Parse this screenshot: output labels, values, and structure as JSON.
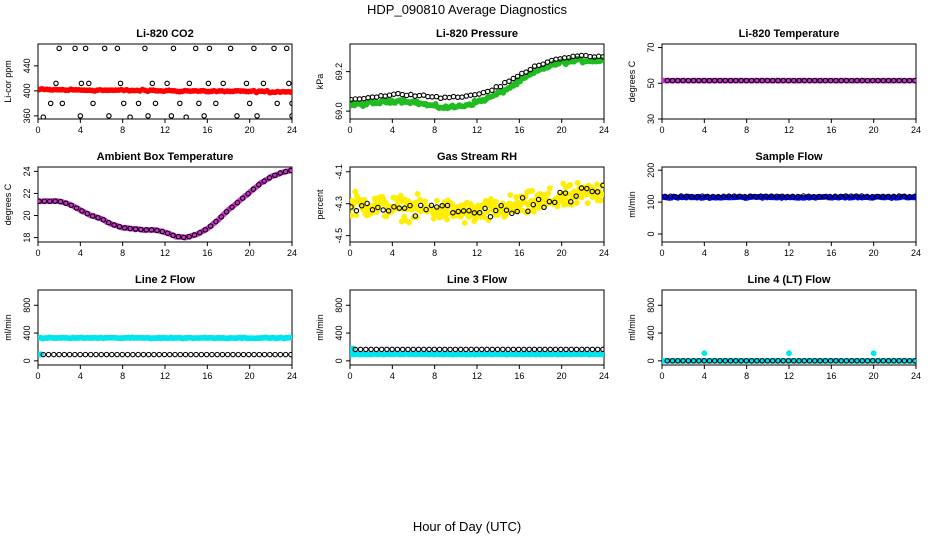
{
  "figure": {
    "title": "HDP_090810  Average Diagnostics",
    "xlabel": "Hour of Day (UTC)"
  },
  "chart_data": [
    {
      "type": "scatter",
      "title": "Li-820 CO2",
      "ylabel": "Li-cor ppm",
      "xlim": [
        0,
        24
      ],
      "ylim": [
        355,
        475
      ],
      "xticks": [
        0,
        4,
        8,
        12,
        16,
        20,
        24
      ],
      "yticks": [
        360,
        400,
        440
      ],
      "series": [
        {
          "marker": "filled",
          "color": "#ff0000",
          "fn": "flat",
          "params": {
            "a": 402,
            "b": -0.15,
            "noise": 1.2,
            "n": 96
          }
        },
        {
          "marker": "open",
          "color": "#000000",
          "x": [
            0.5,
            1.2,
            1.7,
            2.0,
            2.3,
            3.5,
            4.0,
            4.1,
            4.5,
            4.8,
            5.2,
            6.3,
            6.7,
            7.5,
            7.8,
            8.1,
            8.7,
            9.5,
            10.1,
            10.4,
            10.8,
            11.1,
            12.2,
            12.6,
            12.8,
            13.4,
            14.0,
            14.3,
            14.9,
            15.2,
            15.7,
            16.1,
            16.2,
            16.8,
            17.5,
            18.2,
            18.8,
            19.7,
            20.0,
            20.4,
            20.7,
            21.3,
            22.3,
            22.6,
            23.5,
            23.7,
            24.0,
            24.0
          ],
          "y": [
            358,
            380,
            412,
            468,
            380,
            468,
            360,
            412,
            468,
            412,
            380,
            468,
            360,
            468,
            412,
            380,
            358,
            380,
            468,
            360,
            412,
            380,
            412,
            360,
            468,
            380,
            358,
            412,
            468,
            380,
            360,
            412,
            468,
            380,
            412,
            468,
            360,
            412,
            380,
            468,
            360,
            412,
            468,
            380,
            468,
            412,
            360,
            380
          ]
        }
      ]
    },
    {
      "type": "scatter",
      "title": "Li-820 Pressure",
      "ylabel": "kPa",
      "xlim": [
        0,
        24
      ],
      "ylim": [
        68.96,
        69.34
      ],
      "xticks": [
        0,
        4,
        8,
        12,
        16,
        20,
        24
      ],
      "yticks": [
        69.0,
        69.2
      ],
      "ytick_labels": [
        "69.0",
        "69.2"
      ],
      "series": [
        {
          "marker": "filled",
          "color": "#22bb22",
          "fn": "sigmoid",
          "params": {
            "base": 69.03,
            "top": 69.27,
            "mid": 16.0,
            "k": 0.55,
            "dip": 0.02,
            "noise": 0.008,
            "n": 150
          }
        },
        {
          "marker": "open",
          "color": "#000000",
          "fn": "sigmoid",
          "params": {
            "base": 69.06,
            "top": 69.29,
            "mid": 15.8,
            "k": 0.55,
            "dip": 0.0,
            "noise": 0.004,
            "n": 60
          }
        }
      ]
    },
    {
      "type": "scatter",
      "title": "Li-820 Temperature",
      "ylabel": "degrees C",
      "xlim": [
        0,
        24
      ],
      "ylim": [
        30,
        72
      ],
      "xticks": [
        0,
        4,
        8,
        12,
        16,
        20,
        24
      ],
      "yticks": [
        30,
        50,
        70
      ],
      "series": [
        {
          "marker": "filled",
          "color": "#cc33cc",
          "fn": "flat",
          "params": {
            "a": 51.5,
            "b": 0,
            "noise": 0.05,
            "n": 96
          }
        },
        {
          "marker": "open",
          "color": "#000000",
          "fn": "flat",
          "params": {
            "a": 51.5,
            "b": 0,
            "noise": 0.0,
            "n": 48,
            "start": 0.5
          }
        }
      ]
    },
    {
      "type": "scatter",
      "title": "Ambient Box Temperature",
      "ylabel": "degrees C",
      "xlim": [
        0,
        24
      ],
      "ylim": [
        17.6,
        24.4
      ],
      "xticks": [
        0,
        4,
        8,
        12,
        16,
        20,
        24
      ],
      "yticks": [
        18,
        20,
        22,
        24
      ],
      "series": [
        {
          "marker": "filled",
          "color": "#cc33cc",
          "fn": "ambient",
          "params": {
            "noise": 0.03,
            "n": 150
          }
        },
        {
          "marker": "open",
          "color": "#000000",
          "fn": "ambient",
          "params": {
            "noise": 0.0,
            "n": 48
          }
        }
      ]
    },
    {
      "type": "scatter",
      "title": "Gas Stream RH",
      "ylabel": "percent",
      "xlim": [
        0,
        24
      ],
      "ylim": [
        -4.54,
        -4.07
      ],
      "xticks": [
        0,
        4,
        8,
        12,
        16,
        20,
        24
      ],
      "yticks": [
        -4.5,
        -4.3,
        -4.1
      ],
      "series": [
        {
          "marker": "filled",
          "color": "#ffee00",
          "fn": "rh",
          "params": {
            "noise": 0.06,
            "n": 300
          }
        },
        {
          "marker": "open",
          "color": "#000000",
          "fn": "rh",
          "params": {
            "noise": 0.045,
            "n": 48
          }
        }
      ]
    },
    {
      "type": "scatter",
      "title": "Sample Flow",
      "ylabel": "ml/min",
      "xlim": [
        0,
        24
      ],
      "ylim": [
        -25,
        210
      ],
      "xticks": [
        0,
        4,
        8,
        12,
        16,
        20,
        24
      ],
      "yticks": [
        0,
        100,
        200
      ],
      "series": [
        {
          "marker": "filled",
          "color": "#0000ff",
          "fn": "flat",
          "params": {
            "a": 115,
            "b": 0,
            "noise": 2.0,
            "n": 120
          }
        },
        {
          "marker": "open",
          "color": "#000000",
          "fn": "flat",
          "params": {
            "a": 118,
            "b": 0,
            "noise": 1.0,
            "n": 48,
            "start": 0.3
          }
        }
      ]
    },
    {
      "type": "scatter",
      "title": "Line 2 Flow",
      "ylabel": "ml/min",
      "xlim": [
        0,
        24
      ],
      "ylim": [
        -60,
        1020
      ],
      "xticks": [
        0,
        4,
        8,
        12,
        16,
        20,
        24
      ],
      "yticks": [
        0,
        400,
        800
      ],
      "series": [
        {
          "marker": "filled",
          "color": "#00e5ee",
          "fn": "flat",
          "params": {
            "a": 330,
            "b": 0,
            "noise": 6,
            "n": 150
          }
        },
        {
          "marker": "filled",
          "color": "#00e5ee",
          "fn": "flat",
          "params": {
            "a": 95,
            "b": 0,
            "noise": 3,
            "n": 3,
            "start": 0.0,
            "end": 0.3
          }
        },
        {
          "marker": "open",
          "color": "#000000",
          "fn": "flat",
          "params": {
            "a": 90,
            "b": 0,
            "noise": 0,
            "n": 48,
            "start": 0.5
          }
        }
      ]
    },
    {
      "type": "scatter",
      "title": "Line 3 Flow",
      "ylabel": "ml/min",
      "xlim": [
        0,
        24
      ],
      "ylim": [
        -60,
        1020
      ],
      "xticks": [
        0,
        4,
        8,
        12,
        16,
        20,
        24
      ],
      "yticks": [
        0,
        400,
        800
      ],
      "series": [
        {
          "marker": "filled",
          "color": "#00e5ee",
          "fn": "flat",
          "params": {
            "a": 95,
            "b": 0,
            "noise": 4,
            "n": 150
          }
        },
        {
          "marker": "filled",
          "color": "#00e5ee",
          "fn": "flat",
          "params": {
            "a": 175,
            "b": 0,
            "noise": 3,
            "n": 3,
            "start": 0.0,
            "end": 0.3
          }
        },
        {
          "marker": "open",
          "color": "#000000",
          "fn": "flat",
          "params": {
            "a": 165,
            "b": 0,
            "noise": 0,
            "n": 48,
            "start": 0.5
          }
        }
      ]
    },
    {
      "type": "scatter",
      "title": "Line 4 (LT) Flow",
      "ylabel": "ml/min",
      "xlim": [
        0,
        24
      ],
      "ylim": [
        -60,
        1020
      ],
      "xticks": [
        0,
        4,
        8,
        12,
        16,
        20,
        24
      ],
      "yticks": [
        0,
        400,
        800
      ],
      "series": [
        {
          "marker": "filled",
          "color": "#00e5ee",
          "fn": "flat",
          "params": {
            "a": 0,
            "b": 0,
            "noise": 2,
            "n": 120
          }
        },
        {
          "marker": "filled",
          "color": "#00e5ee",
          "x": [
            4.0,
            12.0,
            20.0
          ],
          "y": [
            110,
            110,
            110
          ]
        },
        {
          "marker": "open",
          "color": "#000000",
          "fn": "flat",
          "params": {
            "a": 0,
            "b": 0,
            "noise": 0,
            "n": 48,
            "start": 0.5
          }
        }
      ]
    }
  ]
}
